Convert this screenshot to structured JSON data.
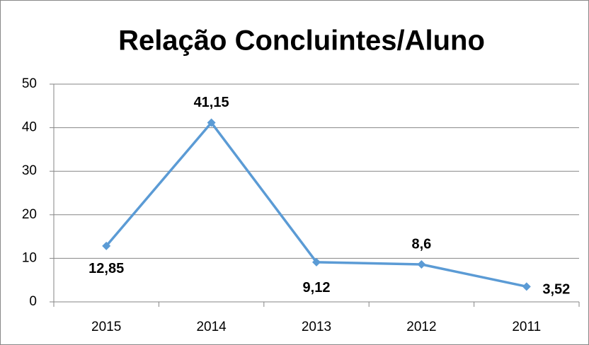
{
  "chart_data": {
    "type": "line",
    "title": "Relação Concluintes/Aluno",
    "categories": [
      "2015",
      "2014",
      "2013",
      "2012",
      "2011"
    ],
    "series": [
      {
        "name": "Relação Concluintes/Aluno",
        "color": "#5b9bd5",
        "values": [
          12.85,
          41.15,
          9.12,
          8.6,
          3.52
        ],
        "value_labels": [
          "12,85",
          "41,15",
          "9,12",
          "8,6",
          "3,52"
        ]
      }
    ],
    "ylim": [
      0,
      50
    ],
    "yticks": [
      0,
      10,
      20,
      30,
      40,
      50
    ],
    "grid": true
  }
}
